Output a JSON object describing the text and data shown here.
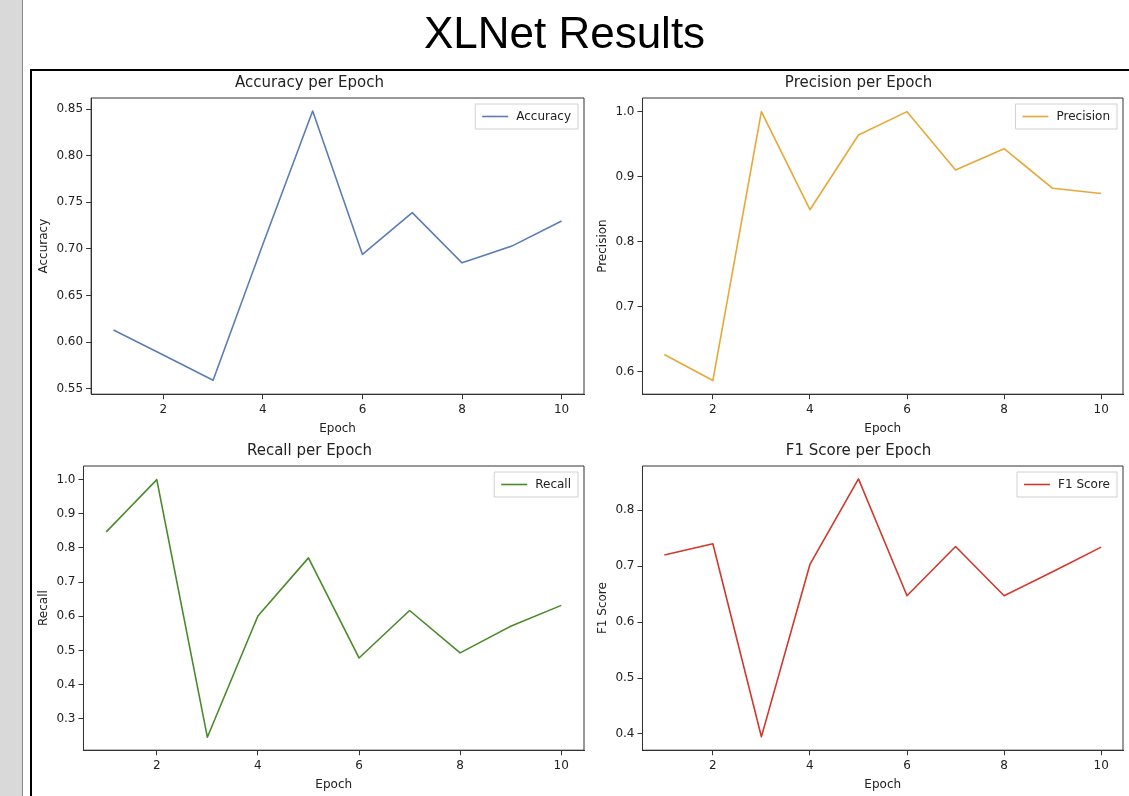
{
  "chart_data": [
    {
      "type": "other",
      "title": "XLNet Results"
    },
    {
      "type": "line",
      "title": "Accuracy per Epoch",
      "xlabel": "Epoch",
      "ylabel": "Accuracy",
      "x": [
        1,
        2,
        3,
        4,
        5,
        6,
        7,
        8,
        9,
        10
      ],
      "xlim": [
        0.55,
        10.45
      ],
      "xticks": [
        2,
        4,
        6,
        8,
        10
      ],
      "ylim": [
        0.544,
        0.862
      ],
      "yticks": [
        {
          "value": 0.55,
          "label": "0.55"
        },
        {
          "value": 0.6,
          "label": "0.60"
        },
        {
          "value": 0.65,
          "label": "0.65"
        },
        {
          "value": 0.7,
          "label": "0.70"
        },
        {
          "value": 0.75,
          "label": "0.75"
        },
        {
          "value": 0.8,
          "label": "0.80"
        },
        {
          "value": 0.85,
          "label": "0.85"
        }
      ],
      "legend": "top right",
      "grid": false,
      "series": [
        {
          "name": "Accuracy",
          "color": "#5a7db5",
          "values": [
            0.613,
            0.586,
            0.559,
            0.705,
            0.848,
            0.694,
            0.739,
            0.685,
            0.703,
            0.73
          ]
        }
      ]
    },
    {
      "type": "line",
      "title": "Precision per Epoch",
      "xlabel": "Epoch",
      "ylabel": "Precision",
      "x": [
        1,
        2,
        3,
        4,
        5,
        6,
        7,
        8,
        9,
        10
      ],
      "xlim": [
        0.55,
        10.45
      ],
      "xticks": [
        2,
        4,
        6,
        8,
        10
      ],
      "ylim": [
        0.565,
        1.021
      ],
      "yticks": [
        {
          "value": 0.6,
          "label": "0.6"
        },
        {
          "value": 0.7,
          "label": "0.7"
        },
        {
          "value": 0.8,
          "label": "0.8"
        },
        {
          "value": 0.9,
          "label": "0.9"
        },
        {
          "value": 1,
          "label": "1.0"
        }
      ],
      "legend": "top right",
      "grid": false,
      "series": [
        {
          "name": "Precision",
          "color": "#e8a838",
          "values": [
            0.626,
            0.586,
            1.0,
            0.849,
            0.964,
            1.0,
            0.91,
            0.943,
            0.882,
            0.874
          ]
        }
      ]
    },
    {
      "type": "line",
      "title": "Recall per Epoch",
      "xlabel": "Epoch",
      "ylabel": "Recall",
      "x": [
        1,
        2,
        3,
        4,
        5,
        6,
        7,
        8,
        9,
        10
      ],
      "xlim": [
        0.55,
        10.45
      ],
      "xticks": [
        2,
        4,
        6,
        8,
        10
      ],
      "ylim": [
        0.208,
        1.04
      ],
      "yticks": [
        {
          "value": 0.3,
          "label": "0.3"
        },
        {
          "value": 0.4,
          "label": "0.4"
        },
        {
          "value": 0.5,
          "label": "0.5"
        },
        {
          "value": 0.6,
          "label": "0.6"
        },
        {
          "value": 0.7,
          "label": "0.7"
        },
        {
          "value": 0.8,
          "label": "0.8"
        },
        {
          "value": 0.9,
          "label": "0.9"
        },
        {
          "value": 1,
          "label": "1.0"
        }
      ],
      "legend": "top right",
      "grid": false,
      "series": [
        {
          "name": "Recall",
          "color": "#4a8a2a",
          "values": [
            0.847,
            1.0,
            0.246,
            0.601,
            0.771,
            0.478,
            0.617,
            0.493,
            0.571,
            0.632
          ]
        }
      ]
    },
    {
      "type": "line",
      "title": "F1 Score per Epoch",
      "xlabel": "Epoch",
      "ylabel": "F1 Score",
      "x": [
        1,
        2,
        3,
        4,
        5,
        6,
        7,
        8,
        9,
        10
      ],
      "xlim": [
        0.55,
        10.45
      ],
      "xticks": [
        2,
        4,
        6,
        8,
        10
      ],
      "ylim": [
        0.371,
        0.879
      ],
      "yticks": [
        0.4,
        0.5,
        0.6,
        0.7,
        0.8
      ],
      "legend": "top right",
      "grid": false,
      "series": [
        {
          "name": "F1 Score",
          "color": "#d0392b",
          "values": [
            0.72,
            0.74,
            0.395,
            0.703,
            0.856,
            0.647,
            0.735,
            0.647,
            0.69,
            0.734
          ]
        }
      ]
    }
  ]
}
